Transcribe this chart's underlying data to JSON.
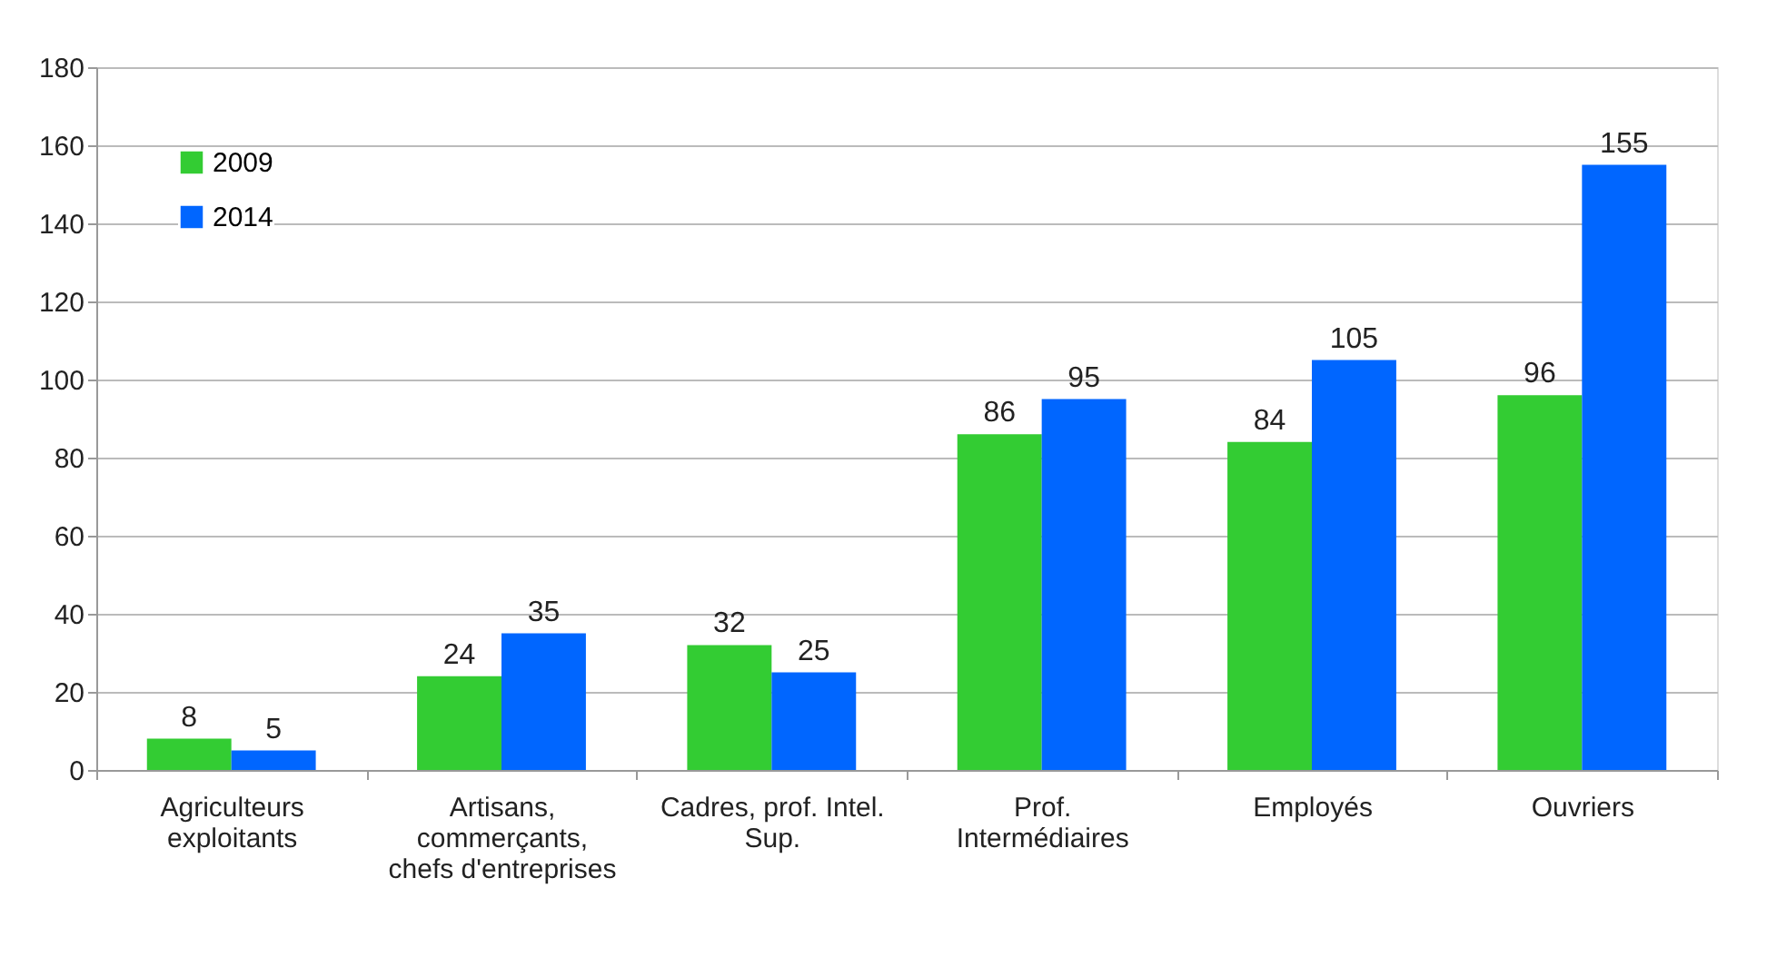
{
  "chart_data": {
    "type": "bar",
    "categories": [
      "Agriculteurs\nexploitants",
      "Artisans,\ncommerçants,\nchefs d'entreprises",
      "Cadres, prof. Intel.\nSup.",
      "Prof.\nIntermédiaires",
      "Employés",
      "Ouvriers"
    ],
    "series": [
      {
        "name": "2009",
        "color": "#33cc33",
        "values": [
          8,
          24,
          32,
          86,
          84,
          96
        ]
      },
      {
        "name": "2014",
        "color": "#0066ff",
        "values": [
          5,
          35,
          25,
          95,
          105,
          155
        ]
      }
    ],
    "ylim": [
      0,
      180
    ],
    "yticks": [
      0,
      20,
      40,
      60,
      80,
      100,
      120,
      140,
      160,
      180
    ],
    "grid": "y",
    "legend": "top left",
    "data_labels": true
  }
}
